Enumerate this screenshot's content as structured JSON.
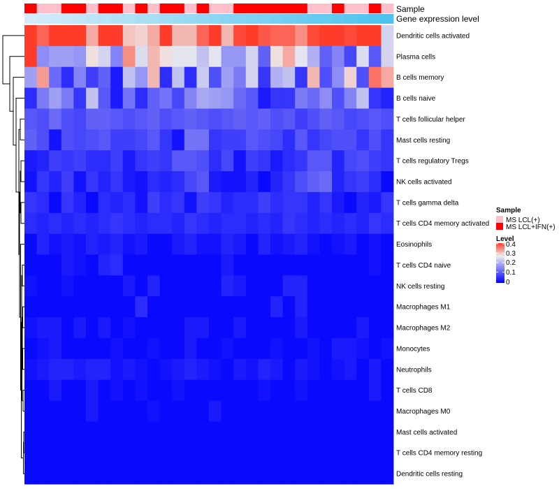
{
  "chart_data": {
    "type": "heatmap",
    "title": "",
    "n_columns": 30,
    "annotations": [
      {
        "name": "Sample",
        "values": [
          "MS LCL+IFN(+)",
          "MS LCL(+)",
          "MS LCL(+)",
          "MS LCL+IFN(+)",
          "MS LCL+IFN(+)",
          "MS LCL(+)",
          "MS LCL+IFN(+)",
          "MS LCL+IFN(+)",
          "MS LCL(+)",
          "MS LCL+IFN(+)",
          "MS LCL(+)",
          "MS LCL+IFN(+)",
          "MS LCL+IFN(+)",
          "MS LCL(+)",
          "MS LCL+IFN(+)",
          "MS LCL(+)",
          "MS LCL(+)",
          "MS LCL+IFN(+)",
          "MS LCL+IFN(+)",
          "MS LCL+IFN(+)",
          "MS LCL+IFN(+)",
          "MS LCL+IFN(+)",
          "MS LCL+IFN(+)",
          "MS LCL(+)",
          "MS LCL(+)",
          "MS LCL+IFN(+)",
          "MS LCL(+)",
          "MS LCL(+)",
          "MS LCL+IFN(+)",
          "MS LCL(+)"
        ]
      },
      {
        "name": "Gene expression level",
        "values": [
          0.2,
          0.22,
          0.24,
          0.26,
          0.28,
          0.3,
          0.32,
          0.34,
          0.36,
          0.38,
          0.4,
          0.42,
          0.44,
          0.46,
          0.48,
          0.5,
          0.52,
          0.54,
          0.56,
          0.58,
          0.6,
          0.62,
          0.64,
          0.66,
          0.68,
          0.7,
          0.72,
          0.74,
          0.76,
          0.78
        ]
      }
    ],
    "rows": [
      "Dendritic cells activated",
      "Plasma cells",
      "B cells memory",
      "B cells naive",
      "T cells follicular helper",
      "Mast cells resting",
      "T cells regulatory  Tregs",
      "NK cells activated",
      "T cells gamma delta",
      "T cells CD4 memory activated",
      "Eosinophils",
      "T cells CD4 naive",
      "NK cells resting",
      "Macrophages M1",
      "Macrophages M2",
      "Monocytes",
      "Neutrophils",
      "T cells CD8",
      "Macrophages M0",
      "Mast cells activated",
      "T cells CD4 memory resting",
      "Dendritic cells resting"
    ],
    "values": [
      [
        0.42,
        0.37,
        0.41,
        0.43,
        0.42,
        0.32,
        0.4,
        0.43,
        0.3,
        0.29,
        0.32,
        0.41,
        0.31,
        0.31,
        0.37,
        0.41,
        0.31,
        0.39,
        0.43,
        0.38,
        0.37,
        0.37,
        0.34,
        0.39,
        0.42,
        0.4,
        0.39,
        0.41,
        0.43,
        0.24
      ],
      [
        0.42,
        0.16,
        0.18,
        0.18,
        0.17,
        0.28,
        0.24,
        0.15,
        0.34,
        0.25,
        0.31,
        0.28,
        0.26,
        0.26,
        0.22,
        0.26,
        0.17,
        0.17,
        0.24,
        0.11,
        0.28,
        0.32,
        0.26,
        0.2,
        0.11,
        0.15,
        0.08,
        0.25,
        0.1,
        0.24
      ],
      [
        0.18,
        0.33,
        0.12,
        0.05,
        0.15,
        0.07,
        0.11,
        0.03,
        0.22,
        0.17,
        0.31,
        0.05,
        0.22,
        0.05,
        0.23,
        0.09,
        0.18,
        0.14,
        0.24,
        0.06,
        0.2,
        0.22,
        0.06,
        0.31,
        0.09,
        0.16,
        0.29,
        0.09,
        0.36,
        0.32
      ],
      [
        0.05,
        0.14,
        0.18,
        0.14,
        0.06,
        0.22,
        0.1,
        0.03,
        0.13,
        0.05,
        0.11,
        0.13,
        0.08,
        0.15,
        0.19,
        0.18,
        0.17,
        0.12,
        0.1,
        0.03,
        0.06,
        0.06,
        0.14,
        0.12,
        0.16,
        0.09,
        0.15,
        0.22,
        0.06,
        0.04
      ],
      [
        0.1,
        0.09,
        0.12,
        0.09,
        0.08,
        0.11,
        0.11,
        0.1,
        0.09,
        0.1,
        0.11,
        0.09,
        0.1,
        0.11,
        0.1,
        0.09,
        0.1,
        0.11,
        0.1,
        0.11,
        0.09,
        0.1,
        0.07,
        0.09,
        0.11,
        0.1,
        0.08,
        0.09,
        0.1,
        0.09
      ],
      [
        0.11,
        0.09,
        0.02,
        0.09,
        0.08,
        0.09,
        0.1,
        0.07,
        0.07,
        0.08,
        0.1,
        0.06,
        0.02,
        0.13,
        0.13,
        0.06,
        0.07,
        0.07,
        0.1,
        0.09,
        0.08,
        0.05,
        0.1,
        0.06,
        0.08,
        0.09,
        0.09,
        0.06,
        0.09,
        0.06
      ],
      [
        0.03,
        0.04,
        0.07,
        0.06,
        0.07,
        0.05,
        0.05,
        0.07,
        0.03,
        0.06,
        0.07,
        0.06,
        0.1,
        0.1,
        0.09,
        0.05,
        0.08,
        0.02,
        0.07,
        0.06,
        0.03,
        0.05,
        0.06,
        0.1,
        0.1,
        0.04,
        0.08,
        0.09,
        0.07,
        0.06
      ],
      [
        0.02,
        0.06,
        0.04,
        0.07,
        0.02,
        0.06,
        0.04,
        0.06,
        0.03,
        0.02,
        0.05,
        0.04,
        0.05,
        0.08,
        0.1,
        0.03,
        0.02,
        0.02,
        0.04,
        0.01,
        0.04,
        0.06,
        0.09,
        0.11,
        0.12,
        0.04,
        0.06,
        0.07,
        0.05,
        0.01
      ],
      [
        0.06,
        0.05,
        0.01,
        0.06,
        0.04,
        0.01,
        0.05,
        0.04,
        0.05,
        0.02,
        0.07,
        0.05,
        0.06,
        0.02,
        0.07,
        0.06,
        0.04,
        0.05,
        0.05,
        0.07,
        0.05,
        0.06,
        0.06,
        0.04,
        0.06,
        0.03,
        0.01,
        0.04,
        0.03,
        0.06
      ],
      [
        0.05,
        0.04,
        0.05,
        0.04,
        0.05,
        0.04,
        0.05,
        0.06,
        0.05,
        0.04,
        0.05,
        0.05,
        0.04,
        0.06,
        0.05,
        0.04,
        0.05,
        0.05,
        0.04,
        0.05,
        0.04,
        0.06,
        0.05,
        0.04,
        0.05,
        0.04,
        0.05,
        0.04,
        0.06,
        0.05
      ],
      [
        0.01,
        0.04,
        0.02,
        0.03,
        0.02,
        0.04,
        0.03,
        0.04,
        0.02,
        0.03,
        0.01,
        0.01,
        0.03,
        0.04,
        0.02,
        0.02,
        0.04,
        0.03,
        0.01,
        0.04,
        0.02,
        0.03,
        0.04,
        0.02,
        0.01,
        0.02,
        0.03,
        0.01,
        0.02,
        0.01
      ],
      [
        0.01,
        0.01,
        0.01,
        0.03,
        0.02,
        0.01,
        0.04,
        0.05,
        0.01,
        0.01,
        0.01,
        0.01,
        0.01,
        0.01,
        0.01,
        0.01,
        0.03,
        0.01,
        0.01,
        0.01,
        0.01,
        0.01,
        0.01,
        0.01,
        0.01,
        0.01,
        0.01,
        0.01,
        0.02,
        0.01
      ],
      [
        0.02,
        0.01,
        0.01,
        0.02,
        0.01,
        0.01,
        0.01,
        0.01,
        0.03,
        0.01,
        0.04,
        0.01,
        0.01,
        0.01,
        0.01,
        0.01,
        0.04,
        0.03,
        0.01,
        0.01,
        0.01,
        0.04,
        0.04,
        0.01,
        0.01,
        0.01,
        0.01,
        0.01,
        0.01,
        0.01
      ],
      [
        0.01,
        0.01,
        0.01,
        0.01,
        0.01,
        0.01,
        0.01,
        0.01,
        0.01,
        0.05,
        0.01,
        0.01,
        0.01,
        0.01,
        0.01,
        0.01,
        0.01,
        0.01,
        0.01,
        0.01,
        0.04,
        0.01,
        0.04,
        0.01,
        0.01,
        0.01,
        0.01,
        0.01,
        0.01,
        0.01
      ],
      [
        0.02,
        0.03,
        0.03,
        0.01,
        0.03,
        0.01,
        0.03,
        0.01,
        0.02,
        0.01,
        0.01,
        0.01,
        0.01,
        0.03,
        0.03,
        0.01,
        0.01,
        0.03,
        0.01,
        0.01,
        0.01,
        0.01,
        0.03,
        0.01,
        0.01,
        0.01,
        0.01,
        0.03,
        0.01,
        0.01
      ],
      [
        0.01,
        0.02,
        0.03,
        0.01,
        0.01,
        0.01,
        0.01,
        0.02,
        0.01,
        0.01,
        0.02,
        0.01,
        0.01,
        0.03,
        0.01,
        0.01,
        0.02,
        0.01,
        0.01,
        0.01,
        0.02,
        0.01,
        0.01,
        0.02,
        0.01,
        0.03,
        0.03,
        0.02,
        0.01,
        0.02
      ],
      [
        0.02,
        0.03,
        0.04,
        0.04,
        0.03,
        0.04,
        0.04,
        0.02,
        0.03,
        0.02,
        0.01,
        0.02,
        0.03,
        0.04,
        0.03,
        0.02,
        0.01,
        0.03,
        0.02,
        0.04,
        0.03,
        0.01,
        0.03,
        0.02,
        0.01,
        0.02,
        0.03,
        0.01,
        0.03,
        0.01
      ],
      [
        0.01,
        0.01,
        0.03,
        0.01,
        0.01,
        0.03,
        0.01,
        0.02,
        0.01,
        0.02,
        0.01,
        0.01,
        0.02,
        0.01,
        0.01,
        0.01,
        0.01,
        0.01,
        0.01,
        0.02,
        0.01,
        0.01,
        0.02,
        0.01,
        0.01,
        0.01,
        0.01,
        0.01,
        0.03,
        0.01
      ],
      [
        0.01,
        0.01,
        0.01,
        0.01,
        0.01,
        0.03,
        0.01,
        0.01,
        0.01,
        0.01,
        0.02,
        0.01,
        0.01,
        0.01,
        0.01,
        0.03,
        0.01,
        0.01,
        0.01,
        0.01,
        0.01,
        0.01,
        0.01,
        0.01,
        0.01,
        0.01,
        0.01,
        0.01,
        0.01,
        0.01
      ],
      [
        0.01,
        0.01,
        0.01,
        0.01,
        0.01,
        0.01,
        0.01,
        0.01,
        0.01,
        0.01,
        0.01,
        0.01,
        0.01,
        0.01,
        0.01,
        0.01,
        0.01,
        0.01,
        0.01,
        0.01,
        0.01,
        0.01,
        0.01,
        0.01,
        0.01,
        0.01,
        0.01,
        0.01,
        0.01,
        0.01
      ],
      [
        0.01,
        0.01,
        0.01,
        0.01,
        0.01,
        0.01,
        0.01,
        0.01,
        0.01,
        0.01,
        0.01,
        0.01,
        0.01,
        0.01,
        0.01,
        0.01,
        0.01,
        0.01,
        0.01,
        0.01,
        0.01,
        0.01,
        0.01,
        0.01,
        0.01,
        0.01,
        0.01,
        0.01,
        0.01,
        0.01
      ],
      [
        0.01,
        0.01,
        0.01,
        0.01,
        0.01,
        0.01,
        0.01,
        0.01,
        0.01,
        0.01,
        0.01,
        0.01,
        0.01,
        0.01,
        0.01,
        0.01,
        0.01,
        0.01,
        0.01,
        0.01,
        0.01,
        0.01,
        0.01,
        0.01,
        0.01,
        0.01,
        0.01,
        0.01,
        0.01,
        0.01
      ]
    ],
    "color_scale": {
      "min": 0,
      "max": 0.4,
      "low": "#0000FF",
      "mid": "#EEEEEE",
      "high": "#FF3B2A",
      "mid_value": 0.27
    },
    "legend": {
      "sample": {
        "title": "Sample",
        "entries": [
          {
            "label": "MS LCL(+)",
            "color": "#FFC0CB"
          },
          {
            "label": "MS LCL+IFN(+)",
            "color": "#FF0000"
          }
        ]
      },
      "level": {
        "title": "Level",
        "ticks": [
          "0.4",
          "0.3",
          "0.2",
          "0.1",
          "0"
        ]
      }
    },
    "expression_colors": {
      "low": "#D4ECF9",
      "high": "#4BC3EE"
    },
    "dendrogram": "rows"
  }
}
